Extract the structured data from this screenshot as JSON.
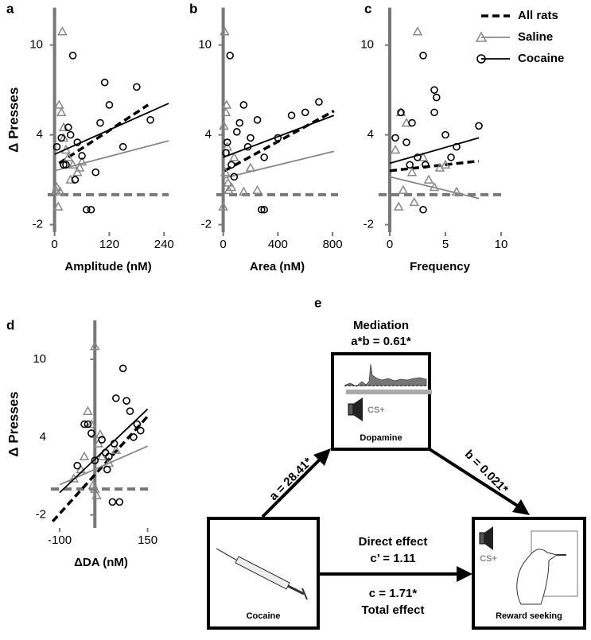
{
  "chart_data": [
    {
      "type": "scatter",
      "panel": "a",
      "ylabel": "Δ Presses",
      "xlabel": "Amplitude (nM)",
      "xlim": [
        -15,
        250
      ],
      "ylim": [
        -2.5,
        12.5
      ],
      "xticks": [
        0,
        120,
        240
      ],
      "yticks": [
        -2,
        4,
        10
      ],
      "axis_lines_at_zero": true,
      "series": [
        {
          "color": "#000000",
          "marker": null,
          "dash": true,
          "fit_x": [
            10,
            205
          ],
          "fit_y": [
            2.1,
            6.0
          ]
        },
        {
          "color": "#888888",
          "marker": "triangle",
          "dash": false,
          "x": [
            17,
            10,
            15,
            20,
            25,
            30,
            5,
            12,
            40,
            50,
            55,
            60,
            8,
            3,
            20,
            35
          ],
          "y": [
            10.9,
            6.0,
            5.5,
            4.5,
            3.0,
            2.5,
            0.5,
            0.2,
            2.0,
            1.5,
            1.8,
            2.2,
            -0.8,
            0.3,
            3.8,
            1.0
          ],
          "fit_x": [
            0,
            250
          ],
          "fit_y": [
            1.6,
            3.6
          ]
        },
        {
          "color": "#000000",
          "marker": "circle",
          "dash": false,
          "x": [
            40,
            5,
            15,
            25,
            30,
            50,
            60,
            80,
            100,
            110,
            120,
            150,
            180,
            210,
            45,
            35,
            20,
            70,
            90
          ],
          "y": [
            9.3,
            3.2,
            3.8,
            2.0,
            4.5,
            3.5,
            2.6,
            -1.0,
            4.8,
            7.5,
            6.0,
            3.2,
            7.2,
            5.0,
            1.0,
            4.0,
            2.0,
            -1.0,
            1.5
          ],
          "fit_x": [
            0,
            250
          ],
          "fit_y": [
            2.7,
            6.1
          ]
        }
      ]
    },
    {
      "type": "scatter",
      "panel": "b",
      "xlabel": "Area (nM)",
      "xlim": [
        -50,
        840
      ],
      "ylim": [
        -2.5,
        12.5
      ],
      "xticks": [
        0,
        400,
        800
      ],
      "yticks": [
        -2,
        4,
        10
      ],
      "axis_lines_at_zero": true,
      "series": [
        {
          "color": "#000000",
          "marker": null,
          "dash": true,
          "fit_x": [
            10,
            810
          ],
          "fit_y": [
            1.6,
            5.6
          ]
        },
        {
          "color": "#888888",
          "marker": "triangle",
          "dash": false,
          "x": [
            10,
            20,
            5,
            30,
            15,
            40,
            60,
            80,
            150,
            200,
            250,
            0,
            25,
            35
          ],
          "y": [
            10.9,
            5.5,
            4.6,
            3.2,
            1.5,
            0.3,
            0.5,
            2.5,
            0.2,
            1.8,
            0.3,
            -0.8,
            6.0,
            0.8
          ],
          "fit_x": [
            0,
            810
          ],
          "fit_y": [
            1.1,
            2.9
          ]
        },
        {
          "color": "#000000",
          "marker": "circle",
          "dash": false,
          "x": [
            50,
            30,
            100,
            150,
            200,
            250,
            300,
            400,
            500,
            600,
            700,
            60,
            80,
            120,
            20,
            280,
            300,
            180
          ],
          "y": [
            9.3,
            3.5,
            4.2,
            6.0,
            3.8,
            5.0,
            2.5,
            3.8,
            5.3,
            5.5,
            6.2,
            2.0,
            1.2,
            4.8,
            2.8,
            -1.0,
            -1.0,
            3.2
          ],
          "fit_x": [
            0,
            810
          ],
          "fit_y": [
            2.5,
            5.3
          ]
        }
      ]
    },
    {
      "type": "scatter",
      "panel": "c",
      "xlabel": "Frequency",
      "legend": "upper right",
      "xlim": [
        -1,
        10
      ],
      "ylim": [
        -2.5,
        12.5
      ],
      "xticks": [
        0,
        5,
        10
      ],
      "yticks": [
        -2,
        4,
        10
      ],
      "axis_lines_at_zero": true,
      "series": [
        {
          "name": "All rats",
          "color": "#000000",
          "marker": null,
          "dash": true,
          "fit_x": [
            0,
            8
          ],
          "fit_y": [
            1.6,
            2.25
          ]
        },
        {
          "name": "Saline",
          "color": "#888888",
          "marker": "triangle",
          "dash": false,
          "x": [
            2.5,
            1,
            1.5,
            0.5,
            2,
            3,
            4,
            5,
            6,
            1.2,
            0.8,
            3.5,
            2.2,
            4.5
          ],
          "y": [
            10.9,
            5.5,
            4.8,
            3.0,
            1.5,
            2.5,
            0.5,
            2.0,
            0.2,
            0.3,
            -0.8,
            1.0,
            -0.5,
            1.8
          ],
          "fit_x": [
            0,
            8
          ],
          "fit_y": [
            1.2,
            -0.25
          ]
        },
        {
          "name": "Cocaine",
          "color": "#000000",
          "marker": "circle",
          "dash": false,
          "x": [
            3,
            1,
            2,
            4,
            4.2,
            5,
            6,
            8,
            1.5,
            2.5,
            3.2,
            0.5,
            1.8,
            4,
            5.5,
            3
          ],
          "y": [
            9.3,
            5.5,
            4.8,
            7.0,
            6.5,
            4.0,
            3.2,
            4.6,
            3.5,
            2.5,
            2.0,
            3.8,
            2.0,
            5.5,
            2.5,
            -1.0
          ],
          "fit_x": [
            0,
            8
          ],
          "fit_y": [
            2.1,
            3.8
          ]
        }
      ]
    },
    {
      "type": "scatter",
      "panel": "d",
      "ylabel": "Δ Presses",
      "xlabel": "ΔDA (nM)",
      "xlim": [
        -125,
        160
      ],
      "ylim": [
        -3,
        13
      ],
      "xticks": [
        -100,
        150
      ],
      "yticks": [
        -2,
        4,
        10
      ],
      "axis_lines_at_zero": true,
      "series": [
        {
          "color": "#000000",
          "marker": null,
          "dash": true,
          "fit_x": [
            -120,
            150
          ],
          "fit_y": [
            -2.5,
            5.6
          ]
        },
        {
          "color": "#888888",
          "marker": "triangle",
          "dash": false,
          "x": [
            0,
            -20,
            -10,
            10,
            20,
            40,
            -40,
            -60,
            -5,
            5,
            60,
            -30,
            0,
            15
          ],
          "y": [
            11,
            6.0,
            5.0,
            3.5,
            2.5,
            2.0,
            1.5,
            0.8,
            0.3,
            -0.5,
            3.0,
            2.5,
            0.0,
            4.2
          ],
          "fit_x": [
            -100,
            150
          ],
          "fit_y": [
            0.33,
            3.3
          ]
        },
        {
          "color": "#000000",
          "marker": "circle",
          "dash": false,
          "x": [
            80,
            -30,
            -20,
            -10,
            20,
            40,
            60,
            90,
            100,
            110,
            120,
            130,
            -50,
            0,
            30,
            50,
            70,
            35,
            55
          ],
          "y": [
            9.3,
            5.0,
            5.0,
            4.3,
            3.8,
            2.5,
            7.0,
            6.8,
            6.0,
            4.0,
            5.0,
            4.5,
            1.8,
            2.2,
            2.8,
            -1.0,
            -1.0,
            1.5,
            3.5
          ],
          "fit_x": [
            -100,
            150
          ],
          "fit_y": [
            -0.28,
            6.16
          ]
        }
      ]
    }
  ],
  "diagram": {
    "panel": "e",
    "title": "Mediation",
    "subtitle": "a*b = 0.61*",
    "mediator": {
      "label": "Dopamine",
      "cue": "CS+"
    },
    "source": {
      "label": "Cocaine"
    },
    "outcome": {
      "label": "Reward seeking",
      "cue": "CS+"
    },
    "path_a": "a = 28.41*",
    "path_b": "b = 0.021*",
    "direct_label": "Direct effect",
    "direct": "c’ = 1.11",
    "total": "c = 1.71*",
    "total_label": "Total effect"
  }
}
